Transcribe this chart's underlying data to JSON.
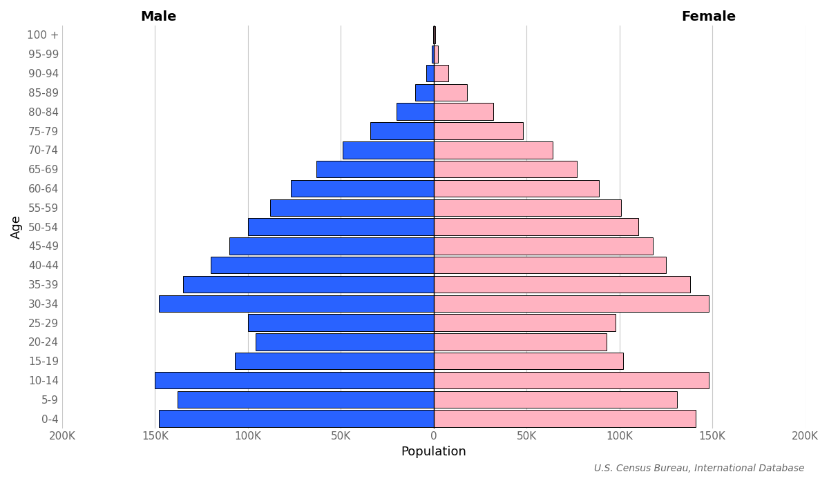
{
  "age_groups": [
    "0-4",
    "5-9",
    "10-14",
    "15-19",
    "20-24",
    "25-29",
    "30-34",
    "35-39",
    "40-44",
    "45-49",
    "50-54",
    "55-59",
    "60-64",
    "65-69",
    "70-74",
    "75-79",
    "80-84",
    "85-89",
    "90-94",
    "95-99",
    "100 +"
  ],
  "male": [
    148000,
    138000,
    150000,
    107000,
    96000,
    100000,
    148000,
    135000,
    120000,
    110000,
    100000,
    88000,
    77000,
    63000,
    49000,
    34000,
    20000,
    10000,
    4000,
    1200,
    300
  ],
  "female": [
    141000,
    131000,
    148000,
    102000,
    93000,
    98000,
    148000,
    138000,
    125000,
    118000,
    110000,
    101000,
    89000,
    77000,
    64000,
    48000,
    32000,
    18000,
    8000,
    2500,
    700
  ],
  "male_color": "#2962FF",
  "female_color": "#FFB3C1",
  "bar_edgecolor": "#000000",
  "bar_linewidth": 0.7,
  "xlabel": "Population",
  "ylabel": "Age",
  "male_label": "Male",
  "female_label": "Female",
  "source_text": "U.S. Census Bureau, International Database",
  "xlim": 200000,
  "grid_color": "#c8c8c8",
  "background_color": "#ffffff",
  "tick_label_color": "#666666",
  "axis_label_color": "#000000",
  "label_fontsize": 13,
  "tick_fontsize": 11,
  "source_fontsize": 10,
  "ylabel_fontsize": 13
}
